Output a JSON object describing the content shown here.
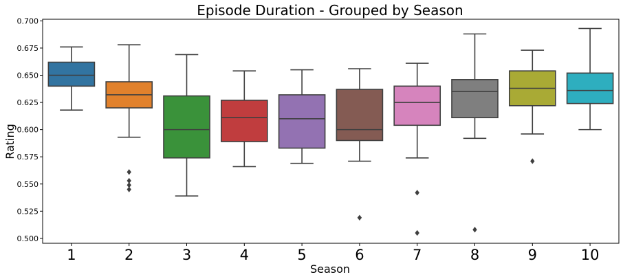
{
  "chart_data": {
    "type": "box",
    "title": "Episode Duration - Grouped by Season",
    "xlabel": "Season",
    "ylabel": "Rating",
    "ylim": [
      0.4955,
      0.7015
    ],
    "yticks": [
      "0.500",
      "0.525",
      "0.550",
      "0.575",
      "0.600",
      "0.625",
      "0.650",
      "0.675",
      "0.700"
    ],
    "grid": false,
    "categories": [
      "1",
      "2",
      "3",
      "4",
      "5",
      "6",
      "7",
      "8",
      "9",
      "10"
    ],
    "colors": [
      "#3274a1",
      "#e1812c",
      "#3a923a",
      "#c03d3e",
      "#9372b2",
      "#845b53",
      "#d684bd",
      "#7f7f7f",
      "#a9aa35",
      "#2eaebf"
    ],
    "series": [
      {
        "category": "1",
        "whisker_low": 0.618,
        "q1": 0.64,
        "median": 0.65,
        "q3": 0.662,
        "whisker_high": 0.676,
        "outliers": []
      },
      {
        "category": "2",
        "whisker_low": 0.593,
        "q1": 0.62,
        "median": 0.632,
        "q3": 0.644,
        "whisker_high": 0.678,
        "outliers": [
          0.561,
          0.553,
          0.549,
          0.545
        ]
      },
      {
        "category": "3",
        "whisker_low": 0.539,
        "q1": 0.574,
        "median": 0.6,
        "q3": 0.631,
        "whisker_high": 0.669,
        "outliers": []
      },
      {
        "category": "4",
        "whisker_low": 0.566,
        "q1": 0.589,
        "median": 0.611,
        "q3": 0.627,
        "whisker_high": 0.654,
        "outliers": []
      },
      {
        "category": "5",
        "whisker_low": 0.569,
        "q1": 0.583,
        "median": 0.61,
        "q3": 0.632,
        "whisker_high": 0.655,
        "outliers": []
      },
      {
        "category": "6",
        "whisker_low": 0.571,
        "q1": 0.59,
        "median": 0.6,
        "q3": 0.637,
        "whisker_high": 0.656,
        "outliers": [
          0.519
        ]
      },
      {
        "category": "7",
        "whisker_low": 0.574,
        "q1": 0.604,
        "median": 0.625,
        "q3": 0.64,
        "whisker_high": 0.661,
        "outliers": [
          0.542,
          0.505
        ]
      },
      {
        "category": "8",
        "whisker_low": 0.592,
        "q1": 0.611,
        "median": 0.635,
        "q3": 0.646,
        "whisker_high": 0.688,
        "outliers": [
          0.508
        ]
      },
      {
        "category": "9",
        "whisker_low": 0.596,
        "q1": 0.622,
        "median": 0.638,
        "q3": 0.654,
        "whisker_high": 0.673,
        "outliers": [
          0.571
        ]
      },
      {
        "category": "10",
        "whisker_low": 0.6,
        "q1": 0.624,
        "median": 0.636,
        "q3": 0.652,
        "whisker_high": 0.693,
        "outliers": []
      }
    ]
  }
}
